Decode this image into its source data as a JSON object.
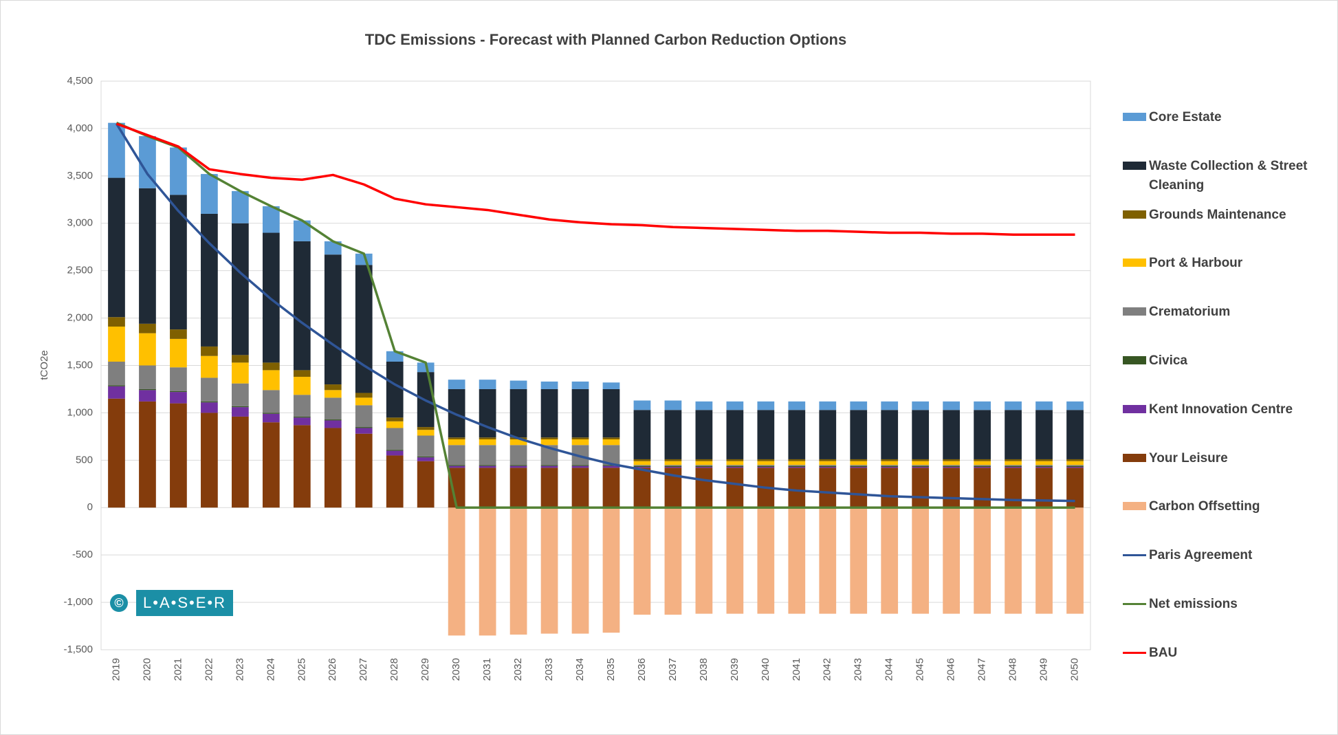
{
  "chart_data": {
    "type": "bar",
    "stacked": true,
    "title": "TDC Emissions - Forecast with Planned Carbon Reduction Options",
    "y_label": "tCO2e",
    "annotations": [
      "©",
      "L•A•S•E•R"
    ],
    "categories": [
      "2019",
      "2020",
      "2021",
      "2022",
      "2023",
      "2024",
      "2025",
      "2026",
      "2027",
      "2028",
      "2029",
      "2030",
      "2031",
      "2032",
      "2033",
      "2034",
      "2035",
      "2036",
      "2037",
      "2038",
      "2039",
      "2040",
      "2041",
      "2042",
      "2043",
      "2044",
      "2045",
      "2046",
      "2047",
      "2048",
      "2049",
      "2050"
    ],
    "ylim": [
      -1500,
      4500
    ],
    "yticks": [
      {
        "value": -1500,
        "label": "-1,500"
      },
      {
        "value": -1000,
        "label": "-1,000"
      },
      -500,
      0,
      500,
      {
        "value": 1000,
        "label": "1,000"
      },
      {
        "value": 1500,
        "label": "1,500"
      },
      {
        "value": 2000,
        "label": "2,000"
      },
      {
        "value": 2500,
        "label": "2,500"
      },
      {
        "value": 3000,
        "label": "3,000"
      },
      {
        "value": 3500,
        "label": "3,500"
      },
      {
        "value": 4000,
        "label": "4,000"
      },
      {
        "value": 4500,
        "label": "4,500"
      }
    ],
    "grid": true,
    "legend": "right",
    "series": [
      {
        "name": "Core Estate",
        "color": "#5b9bd5",
        "type": "bar",
        "values": [
          580,
          550,
          500,
          420,
          340,
          280,
          220,
          140,
          120,
          110,
          100,
          100,
          100,
          90,
          80,
          80,
          70,
          100,
          100,
          90,
          90,
          90,
          90,
          90,
          90,
          90,
          90,
          90,
          90,
          90,
          90,
          90
        ]
      },
      {
        "name": "Waste Collection & Street Cleaning",
        "color": "#1f2a36",
        "type": "bar",
        "values": [
          1470,
          1430,
          1420,
          1400,
          1390,
          1370,
          1360,
          1370,
          1350,
          590,
          580,
          510,
          510,
          510,
          510,
          510,
          510,
          520,
          520,
          520,
          520,
          520,
          520,
          520,
          520,
          520,
          520,
          520,
          520,
          520,
          520,
          520
        ]
      },
      {
        "name": "Grounds Maintenance",
        "color": "#7f6000",
        "type": "bar",
        "values": [
          100,
          100,
          100,
          100,
          80,
          80,
          70,
          60,
          50,
          40,
          30,
          20,
          20,
          20,
          20,
          20,
          20,
          20,
          20,
          20,
          20,
          20,
          20,
          20,
          20,
          20,
          20,
          20,
          20,
          20,
          20,
          20
        ]
      },
      {
        "name": "Port & Harbour",
        "color": "#ffc000",
        "type": "bar",
        "values": [
          370,
          340,
          300,
          230,
          220,
          210,
          190,
          80,
          80,
          70,
          60,
          60,
          60,
          60,
          60,
          60,
          60,
          40,
          40,
          40,
          40,
          40,
          40,
          40,
          40,
          40,
          40,
          40,
          40,
          40,
          40,
          40
        ]
      },
      {
        "name": "Crematorium",
        "color": "#7f7f7f",
        "type": "bar",
        "values": [
          250,
          250,
          250,
          250,
          240,
          240,
          230,
          230,
          230,
          230,
          220,
          210,
          210,
          210,
          210,
          210,
          210,
          10,
          10,
          10,
          10,
          10,
          10,
          10,
          10,
          10,
          10,
          10,
          10,
          10,
          10,
          10
        ]
      },
      {
        "name": "Civica",
        "color": "#375623",
        "type": "bar",
        "values": [
          10,
          10,
          10,
          10,
          10,
          10,
          10,
          10,
          10,
          10,
          10,
          10,
          10,
          10,
          10,
          10,
          10,
          10,
          10,
          10,
          10,
          10,
          10,
          10,
          10,
          10,
          10,
          10,
          10,
          10,
          10,
          10
        ]
      },
      {
        "name": "Kent Innovation Centre",
        "color": "#7030a0",
        "type": "bar",
        "values": [
          130,
          120,
          120,
          110,
          100,
          90,
          80,
          80,
          60,
          50,
          40,
          20,
          20,
          20,
          20,
          20,
          20,
          10,
          10,
          10,
          10,
          10,
          10,
          10,
          10,
          10,
          10,
          10,
          10,
          10,
          10,
          10
        ]
      },
      {
        "name": "Your Leisure",
        "color": "#843c0c",
        "type": "bar",
        "values": [
          1150,
          1120,
          1100,
          1000,
          960,
          900,
          870,
          840,
          780,
          550,
          490,
          420,
          420,
          420,
          420,
          420,
          420,
          420,
          420,
          420,
          420,
          420,
          420,
          420,
          420,
          420,
          420,
          420,
          420,
          420,
          420,
          420
        ]
      },
      {
        "name": "Carbon Offsetting",
        "color": "#f4b183",
        "type": "bar",
        "values": [
          0,
          0,
          0,
          0,
          0,
          0,
          0,
          0,
          0,
          0,
          0,
          -1350,
          -1350,
          -1340,
          -1330,
          -1330,
          -1320,
          -1130,
          -1130,
          -1120,
          -1120,
          -1120,
          -1120,
          -1120,
          -1120,
          -1120,
          -1120,
          -1120,
          -1120,
          -1120,
          -1120,
          -1120
        ]
      },
      {
        "name": "Paris Agreement",
        "color": "#2f5597",
        "type": "line",
        "values": [
          4050,
          3520,
          3130,
          2790,
          2480,
          2200,
          1950,
          1720,
          1500,
          1300,
          1130,
          980,
          850,
          730,
          630,
          540,
          460,
          400,
          340,
          290,
          250,
          210,
          180,
          160,
          140,
          120,
          110,
          100,
          90,
          80,
          75,
          70
        ]
      },
      {
        "name": "Net emissions",
        "color": "#548235",
        "type": "line",
        "values": [
          4060,
          3920,
          3800,
          3520,
          3340,
          3180,
          3030,
          2810,
          2680,
          1650,
          1530,
          0,
          0,
          0,
          0,
          0,
          0,
          0,
          0,
          0,
          0,
          0,
          0,
          0,
          0,
          0,
          0,
          0,
          0,
          0,
          0,
          0
        ]
      },
      {
        "name": "BAU",
        "color": "#ff0000",
        "type": "line",
        "values": [
          4050,
          3930,
          3810,
          3570,
          3520,
          3480,
          3460,
          3510,
          3410,
          3260,
          3200,
          3170,
          3140,
          3090,
          3040,
          3010,
          2990,
          2980,
          2960,
          2950,
          2940,
          2930,
          2920,
          2920,
          2910,
          2900,
          2900,
          2890,
          2890,
          2880,
          2880,
          2880
        ]
      }
    ]
  }
}
